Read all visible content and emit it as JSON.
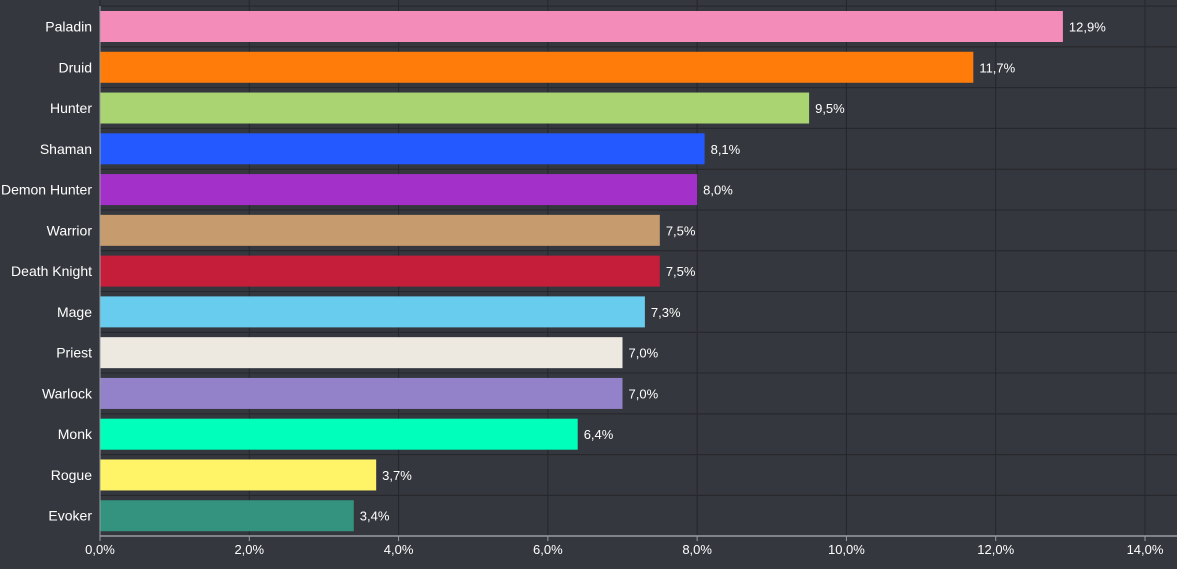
{
  "chart_data": {
    "type": "bar",
    "orientation": "horizontal",
    "title": "",
    "xlabel": "",
    "ylabel": "",
    "categories": [
      "Paladin",
      "Druid",
      "Hunter",
      "Shaman",
      "Demon Hunter",
      "Warrior",
      "Death Knight",
      "Mage",
      "Priest",
      "Warlock",
      "Monk",
      "Rogue",
      "Evoker"
    ],
    "values": [
      12.9,
      11.7,
      9.5,
      8.1,
      8.0,
      7.5,
      7.5,
      7.3,
      7.0,
      7.0,
      6.4,
      3.7,
      3.4
    ],
    "value_labels": [
      "12,9%",
      "11,7%",
      "9,5%",
      "8,1%",
      "8,0%",
      "7,5%",
      "7,5%",
      "7,3%",
      "7,0%",
      "7,0%",
      "6,4%",
      "3,7%",
      "3,4%"
    ],
    "colors": [
      "#f48cba",
      "#ff7c0a",
      "#aad372",
      "#2459ff",
      "#a330c9",
      "#c69b6d",
      "#c41e3a",
      "#68ccef",
      "#ede9e0",
      "#9382c9",
      "#00ffba",
      "#fff468",
      "#33937f"
    ],
    "xlim": [
      0,
      14
    ],
    "xticks": [
      0,
      2,
      4,
      6,
      8,
      10,
      12,
      14
    ],
    "xtick_labels": [
      "0,0%",
      "2,0%",
      "4,0%",
      "6,0%",
      "8,0%",
      "10,0%",
      "12,0%",
      "14,0%"
    ],
    "grid": true,
    "legend": "none"
  },
  "theme": {
    "background": "#34373d",
    "grid_color": "#24272b",
    "axis_color": "#9a9da2",
    "text_color": "#ffffff"
  }
}
